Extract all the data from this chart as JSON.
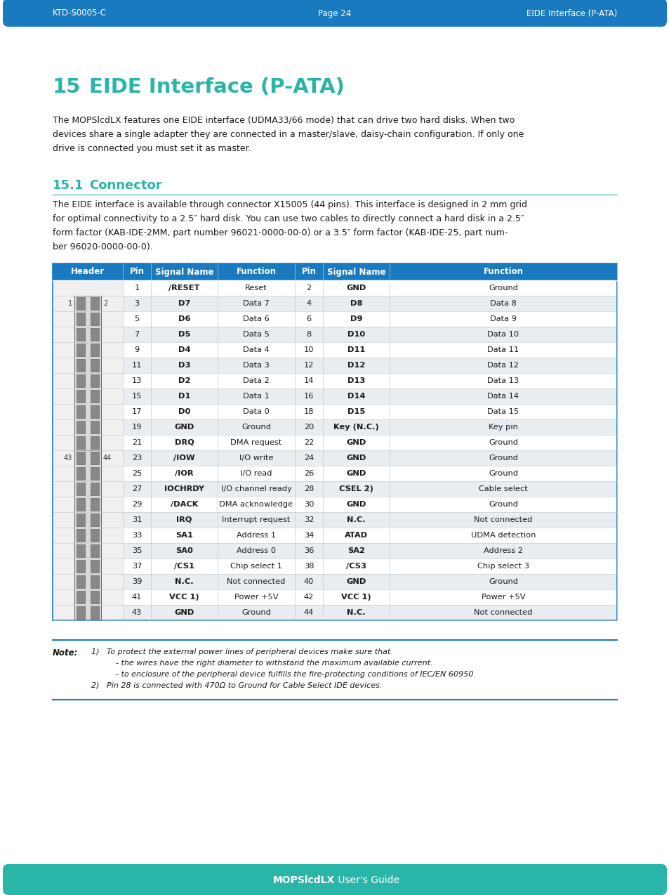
{
  "header_bar_color": "#1a7abf",
  "footer_bar_color": "#2ab5a9",
  "header_left": "KTD-S0005-C",
  "header_center": "Page 24",
  "header_right": "EIDE Interface (P-ATA)",
  "footer_text_bold": "MOPSlcdLX",
  "footer_text_normal": " User's Guide",
  "title_number": "15",
  "title_text": "EIDE Interface (P-ATA)",
  "title_color": "#2ab5a9",
  "section_number": "15.1",
  "section_title": "Connector",
  "section_color": "#2ab5a9",
  "body_text1_lines": [
    "The MOPSlcdLX features one EIDE interface (UDMA33/66 mode) that can drive two hard disks. When two",
    "devices share a single adapter they are connected in a master/slave, daisy-chain configuration. If only one",
    "drive is connected you must set it as master."
  ],
  "body_text2_lines": [
    "The EIDE interface is available through connector X15005 (44 pins). This interface is designed in 2 mm grid",
    "for optimal connectivity to a 2.5″ hard disk. You can use two cables to directly connect a hard disk in a 2.5″",
    "form factor (KAB-IDE-2MM, part number 96021-0000-00-0) or a 3.5″ form factor (KAB-IDE-25, part num-",
    "ber 96020-0000-00-0)."
  ],
  "table_header_bg": "#1a7abf",
  "table_header_color": "#ffffff",
  "table_row_even": "#e8edf2",
  "table_row_odd": "#ffffff",
  "table_border_color": "#1a7abf",
  "table_line_color": "#c0c8d0",
  "table_headers": [
    "Header",
    "Pin",
    "Signal Name",
    "Function",
    "Pin",
    "Signal Name",
    "Function"
  ],
  "table_rows": [
    [
      "1",
      "/RESET",
      "Reset",
      "2",
      "GND",
      "Ground"
    ],
    [
      "3",
      "D7",
      "Data 7",
      "4",
      "D8",
      "Data 8"
    ],
    [
      "5",
      "D6",
      "Data 6",
      "6",
      "D9",
      "Data 9"
    ],
    [
      "7",
      "D5",
      "Data 5",
      "8",
      "D10",
      "Data 10"
    ],
    [
      "9",
      "D4",
      "Data 4",
      "10",
      "D11",
      "Data 11"
    ],
    [
      "11",
      "D3",
      "Data 3",
      "12",
      "D12",
      "Data 12"
    ],
    [
      "13",
      "D2",
      "Data 2",
      "14",
      "D13",
      "Data 13"
    ],
    [
      "15",
      "D1",
      "Data 1",
      "16",
      "D14",
      "Data 14"
    ],
    [
      "17",
      "D0",
      "Data 0",
      "18",
      "D15",
      "Data 15"
    ],
    [
      "19",
      "GND",
      "Ground",
      "20",
      "Key (N.C.)",
      "Key pin"
    ],
    [
      "21",
      "DRQ",
      "DMA request",
      "22",
      "GND",
      "Ground"
    ],
    [
      "23",
      "/IOW",
      "I/O write",
      "24",
      "GND",
      "Ground"
    ],
    [
      "25",
      "/IOR",
      "I/O read",
      "26",
      "GND",
      "Ground"
    ],
    [
      "27",
      "IOCHRDY",
      "I/O channel ready",
      "28",
      "CSEL 2)",
      "Cable select"
    ],
    [
      "29",
      "/DACK",
      "DMA acknowledge",
      "30",
      "GND",
      "Ground"
    ],
    [
      "31",
      "IRQ",
      "Interrupt request",
      "32",
      "N.C.",
      "Not connected"
    ],
    [
      "33",
      "SA1",
      "Address 1",
      "34",
      "ATAD",
      "UDMA detection"
    ],
    [
      "35",
      "SA0",
      "Address 0",
      "36",
      "SA2",
      "Address 2"
    ],
    [
      "37",
      "/CS1",
      "Chip select 1",
      "38",
      "/CS3",
      "Chip select 3"
    ],
    [
      "39",
      "N.C.",
      "Not connected",
      "40",
      "GND",
      "Ground"
    ],
    [
      "41",
      "VCC 1)",
      "Power +5V",
      "42",
      "VCC 1)",
      "Power +5V"
    ],
    [
      "43",
      "GND",
      "Ground",
      "44",
      "N.C.",
      "Not connected"
    ]
  ],
  "bold_signals": [
    "/RESET",
    "GND",
    "D7",
    "D8",
    "D6",
    "D9",
    "D5",
    "D10",
    "D4",
    "D11",
    "D3",
    "D12",
    "D2",
    "D13",
    "D1",
    "D14",
    "D0",
    "D15",
    "DRQ",
    "/IOW",
    "/IOR",
    "IOCHRDY",
    "/DACK",
    "IRQ",
    "SA1",
    "SA0",
    "/CS1",
    "N.C.",
    "VCC 1)",
    "Key (N.C.)",
    "CSEL 2)",
    "ATAD",
    "SA2",
    "/CS3"
  ],
  "note_label": "Note:",
  "note_lines": [
    "1)   To protect the external power lines of peripheral devices make sure that",
    "          - the wires have the right diameter to withstand the maximum available current.",
    "          - to enclosure of the peripheral device fulfills the fire-protecting conditions of IEC/EN 60950.",
    "2)   Pin 28 is connected with 470Ω to Ground for Cable Select IDE devices."
  ]
}
